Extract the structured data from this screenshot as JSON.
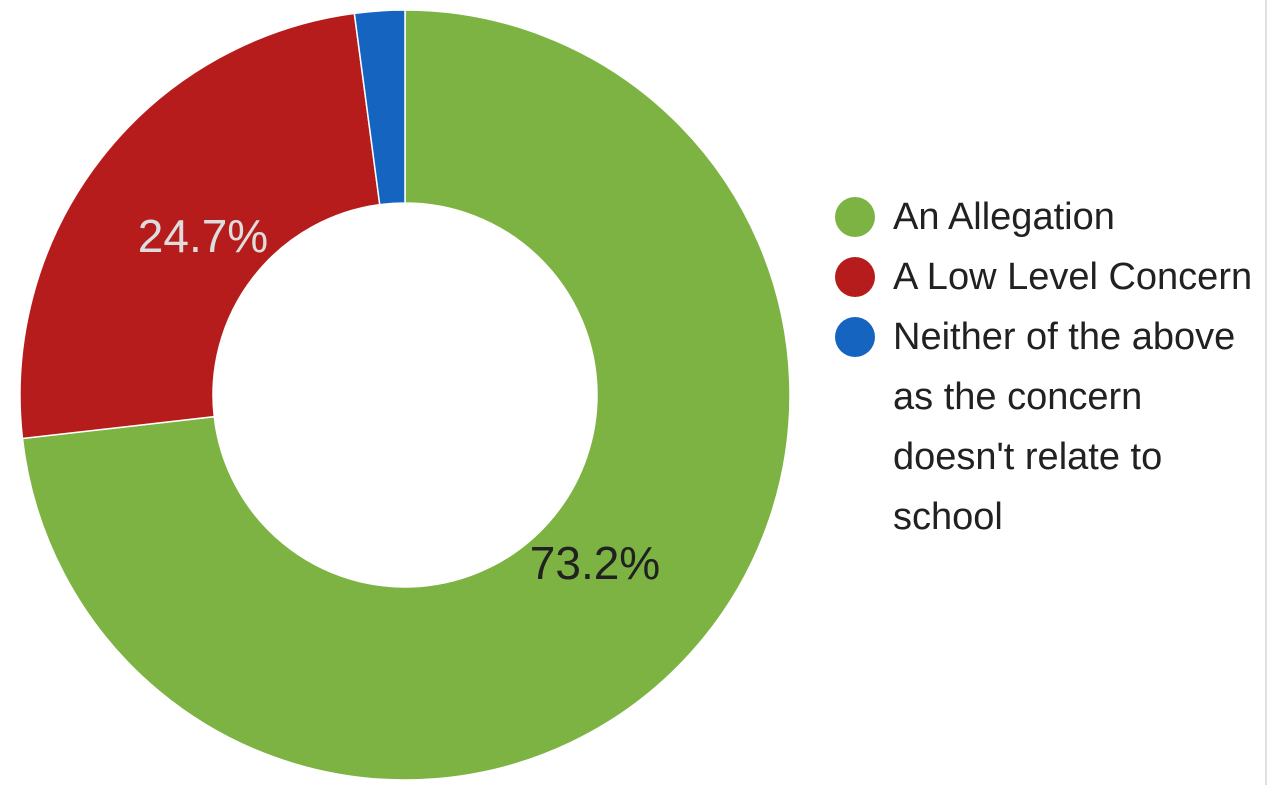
{
  "chart_data": {
    "type": "pie",
    "style": "donut",
    "title": "",
    "slices": [
      {
        "name": "An Allegation",
        "value": 73.2,
        "label": "73.2%",
        "color": "#7cb342",
        "label_color": "#212121"
      },
      {
        "name": "A Low Level Concern",
        "value": 24.7,
        "label": "24.7%",
        "color": "#b71c1c",
        "label_color": "#dddddd"
      },
      {
        "name": "Neither of the above as the concern doesn't relate to school",
        "value": 2.1,
        "label": "",
        "color": "#1565c0",
        "label_color": "#ffffff"
      }
    ],
    "legend": {
      "position": "right",
      "entries": [
        {
          "label": "An Allegation",
          "color": "#7cb342"
        },
        {
          "label": "A Low Level Concern",
          "color": "#b71c1c"
        },
        {
          "label": "Neither of the above as the concern doesn't relate to school",
          "color": "#1565c0"
        }
      ]
    }
  }
}
